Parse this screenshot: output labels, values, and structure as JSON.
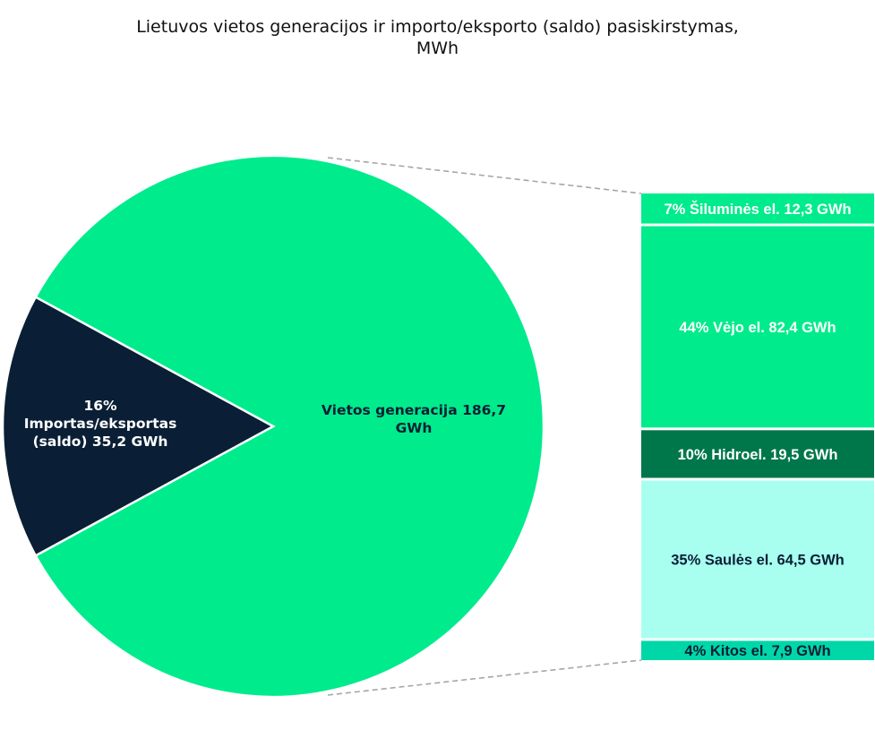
{
  "title": [
    "Lietuvos vietos generacijos ir importo/eksporto (saldo) pasiskirstymas,",
    "MWh"
  ],
  "colors": {
    "local": "#00eb8c",
    "import": "#0a1f35",
    "thermal": "#00eb8c",
    "wind": "#00eb8c",
    "hydro": "#00774a",
    "solar": "#a8fff0",
    "other": "#00d7a8",
    "connector": "#a6a6a6"
  },
  "chart_data": {
    "type": "pie",
    "subtype": "pie-of-bar",
    "pie": {
      "slices": [
        {
          "key": "local",
          "value": 186.7,
          "label_lines": [
            "Vietos generacija   186,7",
            "GWh"
          ]
        },
        {
          "key": "import",
          "value": 35.2,
          "label_lines": [
            "16%",
            "Importas/eksportas",
            "(saldo)  35,2 GWh"
          ]
        }
      ]
    },
    "breakdown_of": "local",
    "bar": {
      "segments": [
        {
          "key": "thermal",
          "percent": 7,
          "value": 12.3,
          "label": "7% Šiluminės el.  12,3 GWh"
        },
        {
          "key": "wind",
          "percent": 44,
          "value": 82.4,
          "label": "44% Vėjo el.  82,4 GWh"
        },
        {
          "key": "hydro",
          "percent": 10,
          "value": 19.5,
          "label": "10% Hidroel.  19,5 GWh"
        },
        {
          "key": "solar",
          "percent": 35,
          "value": 64.5,
          "label": "35% Saulės el.  64,5 GWh"
        },
        {
          "key": "other",
          "percent": 4,
          "value": 7.9,
          "label": "4% Kitos el.  7,9 GWh"
        }
      ]
    }
  }
}
